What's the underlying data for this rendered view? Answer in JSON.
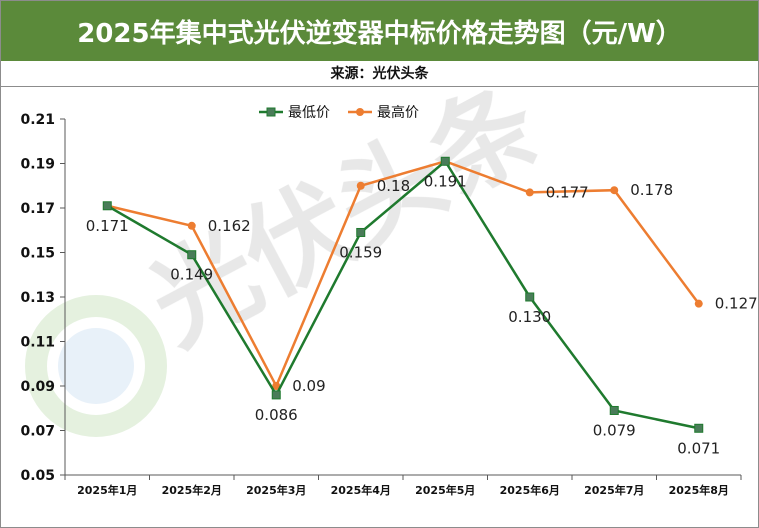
{
  "title": "2025年集中式光伏逆变器中标价格走势图（元/W）",
  "subtitle": "来源：光伏头条",
  "watermark": "光伏头条",
  "colors": {
    "title_bg": "#5b8a3a",
    "low": "#1f7a2e",
    "high": "#ed7d31"
  },
  "chart_data": {
    "type": "line",
    "categories": [
      "2025年1月",
      "2025年2月",
      "2025年3月",
      "2025年4月",
      "2025年5月",
      "2025年6月",
      "2025年7月",
      "2025年8月"
    ],
    "series": [
      {
        "name": "最低价",
        "values": [
          0.171,
          0.149,
          0.086,
          0.159,
          0.191,
          0.13,
          0.079,
          0.071
        ],
        "labels": [
          "0.171",
          "0.149",
          "0.086",
          "0.159",
          "0.191",
          "0.130",
          "0.079",
          "0.071"
        ]
      },
      {
        "name": "最高价",
        "values": [
          0.171,
          0.162,
          0.09,
          0.18,
          0.191,
          0.177,
          0.178,
          0.127
        ],
        "labels": [
          "",
          "0.162",
          "0.09",
          "0.18",
          "",
          "0.177",
          "0.178",
          "0.127"
        ]
      }
    ],
    "yticks": [
      "0.21",
      "0.19",
      "0.17",
      "0.15",
      "0.13",
      "0.11",
      "0.09",
      "0.07",
      "0.05"
    ],
    "ylim": [
      0.05,
      0.21
    ],
    "legend_position": "top-center",
    "grid": false
  }
}
